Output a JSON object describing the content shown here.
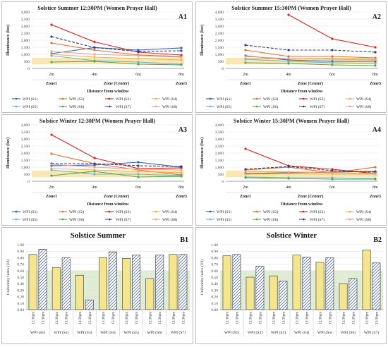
{
  "line_charts": [
    {
      "title": "Solstice Summer 12:30PM (Women Prayer Hall)",
      "tag": "A1",
      "ylabel": "Illuminance (lux)",
      "xlabel": "Distance from window",
      "yticks": [
        "0",
        "500",
        "1,000",
        "1,500",
        "2,000",
        "2,500",
        "3,000",
        "3,500",
        "4,000"
      ],
      "xtick_top": [
        "2m",
        "4m",
        "6m",
        "8m"
      ],
      "xtick_bottom": [
        "Zone1",
        "Zone (Center)",
        "Zone3"
      ],
      "band": [
        300,
        750
      ],
      "series": [
        {
          "name": "WPI (S1)",
          "color": "#2e5fa8",
          "dash": "",
          "values": [
            1050,
            1480,
            1300,
            1450
          ]
        },
        {
          "name": "WPI (S2)",
          "color": "#e2702b",
          "dash": "",
          "values": [
            1800,
            1300,
            950,
            850
          ]
        },
        {
          "name": "WPI (S3)",
          "color": "#e02020",
          "dash": "",
          "values": [
            3100,
            1880,
            1150,
            950
          ]
        },
        {
          "name": "WPI (S4)",
          "color": "#f0b24a",
          "dash": "",
          "values": [
            1000,
            800,
            700,
            600
          ]
        },
        {
          "name": "WPI (S5)",
          "color": "#6fb5c9",
          "dash": "",
          "values": [
            900,
            550,
            450,
            300
          ]
        },
        {
          "name": "WPI (S6)",
          "color": "#55a84a",
          "dash": "",
          "values": [
            450,
            500,
            300,
            250
          ]
        },
        {
          "name": "WPI (S7)",
          "color": "#2b3b7a",
          "dash": "4,2",
          "values": [
            2250,
            1480,
            1200,
            1250
          ]
        },
        {
          "name": "WPI (S8)",
          "color": "#e6a0a0",
          "dash": "",
          "values": [
            1200,
            1000,
            900,
            800
          ]
        }
      ]
    },
    {
      "title": "Solstice Summer 15:30PM (Women Prayer Hall)",
      "tag": "A2",
      "ylabel": "Illuminance (lux)",
      "xlabel": "Distance from window",
      "yticks": [
        "0",
        "500",
        "1,000",
        "1,500",
        "2,000",
        "2,500",
        "3,000",
        "3,500",
        "4,000"
      ],
      "xtick_top": [
        "2m",
        "4m",
        "6m",
        "8m"
      ],
      "xtick_bottom": [
        "Zone1",
        "Zone (Center)",
        "Zone3"
      ],
      "band": [
        300,
        750
      ],
      "series": [
        {
          "name": "WPI (S1)",
          "color": "#2e5fa8",
          "dash": "",
          "values": [
            900,
            600,
            500,
            500
          ]
        },
        {
          "name": "WPI (S2)",
          "color": "#e2702b",
          "dash": "",
          "values": [
            1300,
            850,
            850,
            750
          ]
        },
        {
          "name": "WPI (S3)",
          "color": "#e02020",
          "dash": "",
          "values": [
            null,
            3800,
            2100,
            1500
          ]
        },
        {
          "name": "WPI (S4)",
          "color": "#f0b24a",
          "dash": "",
          "values": [
            700,
            700,
            650,
            600
          ]
        },
        {
          "name": "WPI (S5)",
          "color": "#6fb5c9",
          "dash": "",
          "values": [
            650,
            500,
            400,
            350
          ]
        },
        {
          "name": "WPI (S6)",
          "color": "#55a84a",
          "dash": "",
          "values": [
            400,
            350,
            250,
            200
          ]
        },
        {
          "name": "WPI (S7)",
          "color": "#2b3b7a",
          "dash": "4,2",
          "values": [
            1650,
            1300,
            1300,
            1150
          ]
        },
        {
          "name": "WPI (S8)",
          "color": "#e6a0a0",
          "dash": "",
          "values": [
            850,
            700,
            700,
            650
          ]
        }
      ]
    },
    {
      "title": "Solstice Winter 12:30PM (Women Prayer Hall)",
      "tag": "A3",
      "ylabel": "Illuminance (lux)",
      "xlabel": "Distance from window",
      "yticks": [
        "0",
        "500",
        "1,000",
        "1,500",
        "2,000",
        "2,500",
        "3,000",
        "3,500",
        "4,000"
      ],
      "xtick_top": [
        "2m",
        "4m",
        "6m",
        "8m"
      ],
      "xtick_bottom": [
        "Zone1",
        "Zone (Center)",
        "Zone3"
      ],
      "band": [
        300,
        750
      ],
      "series": [
        {
          "name": "WPI (S1)",
          "color": "#2e5fa8",
          "dash": "",
          "values": [
            1100,
            1150,
            1350,
            1000
          ]
        },
        {
          "name": "WPI (S2)",
          "color": "#e2702b",
          "dash": "",
          "values": [
            1950,
            1250,
            800,
            450
          ]
        },
        {
          "name": "WPI (S3)",
          "color": "#e02020",
          "dash": "",
          "values": [
            3300,
            1650,
            900,
            950
          ]
        },
        {
          "name": "WPI (S4)",
          "color": "#f0b24a",
          "dash": "",
          "values": [
            900,
            800,
            700,
            600
          ]
        },
        {
          "name": "WPI (S5)",
          "color": "#6fb5c9",
          "dash": "",
          "values": [
            800,
            500,
            500,
            400
          ]
        },
        {
          "name": "WPI (S6)",
          "color": "#55a84a",
          "dash": "",
          "values": [
            400,
            700,
            300,
            350
          ]
        },
        {
          "name": "WPI (S7)",
          "color": "#2b3b7a",
          "dash": "4,2",
          "values": [
            1250,
            1250,
            1100,
            1050
          ]
        },
        {
          "name": "WPI (S8)",
          "color": "#e6a0a0",
          "dash": "",
          "values": [
            1200,
            1000,
            850,
            800
          ]
        }
      ]
    },
    {
      "title": "Solstice Winter 15:30PM (Women Prayer Hall)",
      "tag": "A4",
      "ylabel": "Illuminance (lux)",
      "xlabel": "Distance from window",
      "yticks": [
        "0",
        "500",
        "1,000",
        "1,500",
        "2,000",
        "2,500",
        "3,000",
        "3,500",
        "4,000"
      ],
      "xtick_top": [
        "2m",
        "4m",
        "6m",
        "8m"
      ],
      "xtick_bottom": [
        "Zone1",
        "Zone (Center)",
        "Zone3"
      ],
      "band": [
        300,
        750
      ],
      "series": [
        {
          "name": "WPI (S1)",
          "color": "#2e5fa8",
          "dash": "",
          "values": [
            550,
            600,
            650,
            700
          ]
        },
        {
          "name": "WPI (S2)",
          "color": "#e2702b",
          "dash": "",
          "values": [
            800,
            1000,
            600,
            1000
          ]
        },
        {
          "name": "WPI (S3)",
          "color": "#e02020",
          "dash": "",
          "values": [
            2300,
            1100,
            850,
            550
          ]
        },
        {
          "name": "WPI (S4)",
          "color": "#f0b24a",
          "dash": "",
          "values": [
            500,
            550,
            500,
            500
          ]
        },
        {
          "name": "WPI (S5)",
          "color": "#6fb5c9",
          "dash": "",
          "values": [
            300,
            250,
            250,
            200
          ]
        },
        {
          "name": "WPI (S6)",
          "color": "#55a84a",
          "dash": "",
          "values": [
            250,
            200,
            150,
            150
          ]
        },
        {
          "name": "WPI (S7)",
          "color": "#2b3b7a",
          "dash": "4,2",
          "values": [
            850,
            1050,
            750,
            650
          ]
        },
        {
          "name": "WPI (S8)",
          "color": "#e6a0a0",
          "dash": "",
          "values": [
            700,
            650,
            600,
            550
          ]
        }
      ]
    }
  ],
  "bar_charts": [
    {
      "title": "Solstice Summer",
      "tag": "B1",
      "ylabel": "Uniformity Index (U0)",
      "yticks": [
        "0.00",
        "0.10",
        "0.20",
        "0.30",
        "0.40",
        "0.50",
        "0.60",
        "0.70",
        "0.80",
        "0.90",
        "1.00"
      ],
      "time_labels": [
        "12:30pm",
        "15:30pm"
      ],
      "groups": [
        "WPI (S1)",
        "WPI (S2)",
        "WPI (S3)",
        "WPI (S4)",
        "WPI (S5)",
        "WPI (S6)",
        "WPI (S7)"
      ],
      "band": [
        0,
        0.6
      ],
      "values": [
        [
          0.85,
          0.93
        ],
        [
          0.65,
          0.8
        ],
        [
          0.53,
          0.15
        ],
        [
          0.8,
          0.89
        ],
        [
          0.79,
          0.84
        ],
        [
          0.48,
          0.84
        ],
        [
          0.85,
          0.85
        ]
      ]
    },
    {
      "title": "Solstice Winter",
      "tag": "B2",
      "ylabel": "Uniformity Index (U0)",
      "yticks": [
        "0.00",
        "0.10",
        "0.20",
        "0.30",
        "0.40",
        "0.50",
        "0.60",
        "0.70",
        "0.80",
        "0.90",
        "1.00"
      ],
      "time_labels": [
        "12:30pm",
        "15:30pm"
      ],
      "groups": [
        "WPI (S1)",
        "WPI (S2)",
        "WPI (S3)",
        "WPI (S4)",
        "WPI (S5)",
        "WPI (S6)",
        "WPI (S7)"
      ],
      "band": [
        0,
        0.6
      ],
      "values": [
        [
          0.83,
          0.85
        ],
        [
          0.5,
          0.67
        ],
        [
          0.52,
          0.44
        ],
        [
          0.84,
          0.81
        ],
        [
          0.73,
          0.8
        ],
        [
          0.4,
          0.48
        ],
        [
          0.92,
          0.72
        ]
      ]
    }
  ],
  "chart_data": [
    {
      "type": "line",
      "title": "Solstice Summer 12:30PM (Women Prayer Hall)",
      "xlabel": "Distance from window",
      "ylabel": "Illuminance (lux)",
      "x": [
        "2m",
        "4m",
        "6m",
        "8m"
      ],
      "ylim": [
        0,
        4000
      ]
    },
    {
      "type": "line",
      "title": "Solstice Summer 15:30PM (Women Prayer Hall)",
      "xlabel": "Distance from window",
      "ylabel": "Illuminance (lux)",
      "x": [
        "2m",
        "4m",
        "6m",
        "8m"
      ],
      "ylim": [
        0,
        4000
      ]
    },
    {
      "type": "line",
      "title": "Solstice Winter 12:30PM (Women Prayer Hall)",
      "xlabel": "Distance from window",
      "ylabel": "Illuminance (lux)",
      "x": [
        "2m",
        "4m",
        "6m",
        "8m"
      ],
      "ylim": [
        0,
        4000
      ]
    },
    {
      "type": "line",
      "title": "Solstice Winter 15:30PM (Women Prayer Hall)",
      "xlabel": "Distance from window",
      "ylabel": "Illuminance (lux)",
      "x": [
        "2m",
        "4m",
        "6m",
        "8m"
      ],
      "ylim": [
        0,
        4000
      ]
    },
    {
      "type": "bar",
      "title": "Solstice Summer",
      "ylabel": "Uniformity Index (U0)",
      "ylim": [
        0,
        1
      ]
    },
    {
      "type": "bar",
      "title": "Solstice Winter",
      "ylabel": "Uniformity Index (U0)",
      "ylim": [
        0,
        1
      ]
    }
  ]
}
